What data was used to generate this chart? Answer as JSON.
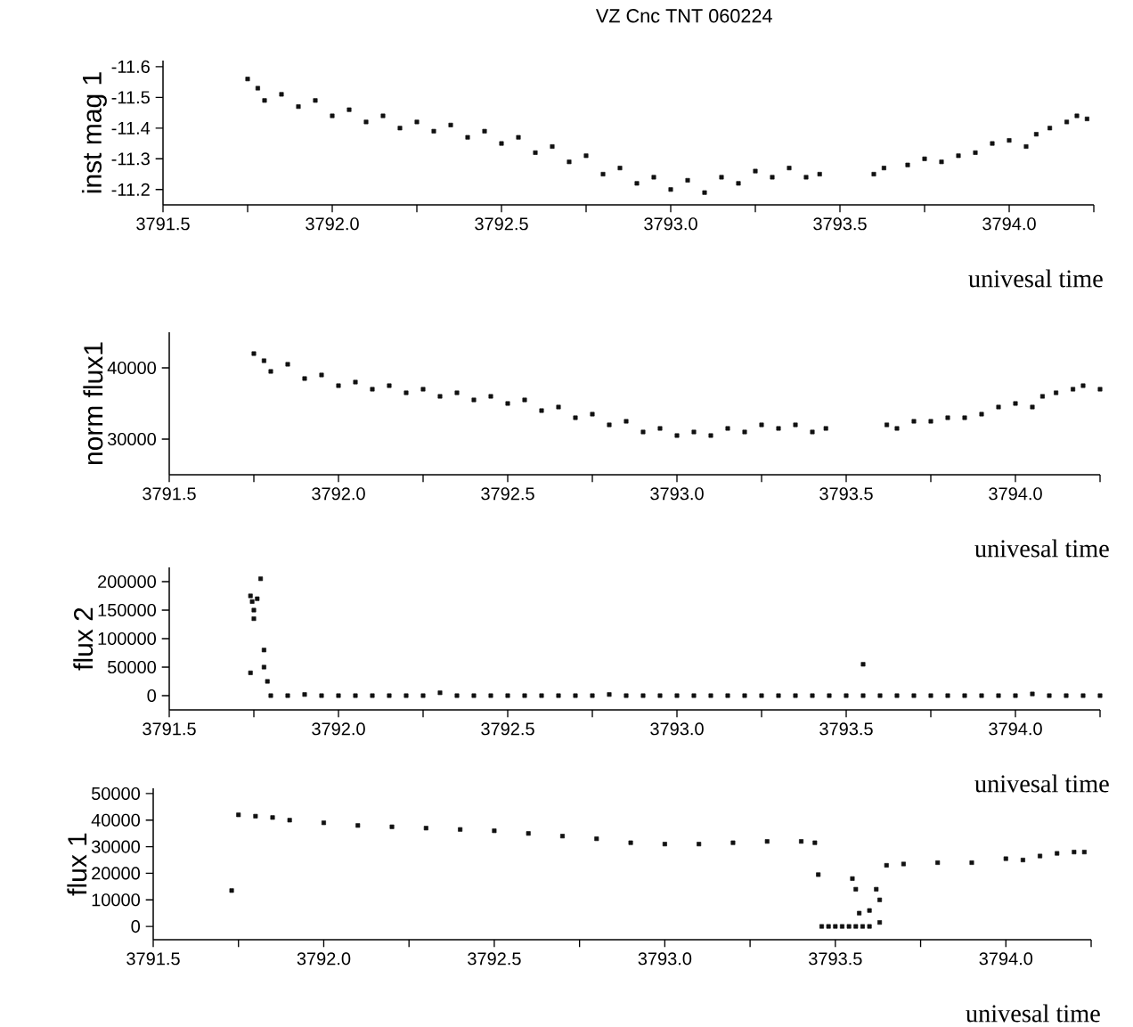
{
  "chart_data": [
    {
      "type": "scatter",
      "title": "VZ Cnc TNT 060224",
      "xlabel": "univesal time",
      "ylabel": "inst mag 1",
      "marker": "square",
      "color": "#111111",
      "xlim": [
        3791.5,
        3794.25
      ],
      "ylim": [
        -11.15,
        -11.62
      ],
      "xticks": [
        {
          "value": 3791.5,
          "label": "3791.5"
        },
        {
          "value": 3791.75,
          "label": null
        },
        {
          "value": 3792,
          "label": "3792.0"
        },
        {
          "value": 3792.25,
          "label": null
        },
        {
          "value": 3792.5,
          "label": "3792.5"
        },
        {
          "value": 3792.75,
          "label": null
        },
        {
          "value": 3793,
          "label": "3793.0"
        },
        {
          "value": 3793.25,
          "label": null
        },
        {
          "value": 3793.5,
          "label": "3793.5"
        },
        {
          "value": 3793.75,
          "label": null
        },
        {
          "value": 3794,
          "label": "3794.0"
        },
        {
          "value": 3794.25,
          "label": null
        }
      ],
      "yticks": [
        -11.6,
        -11.5,
        -11.4,
        -11.3,
        -11.2
      ],
      "x": [
        3791.75,
        3791.78,
        3791.8,
        3791.85,
        3791.9,
        3791.95,
        3792.0,
        3792.05,
        3792.1,
        3792.15,
        3792.2,
        3792.25,
        3792.3,
        3792.35,
        3792.4,
        3792.45,
        3792.5,
        3792.55,
        3792.6,
        3792.65,
        3792.7,
        3792.75,
        3792.8,
        3792.85,
        3792.9,
        3792.95,
        3793.0,
        3793.05,
        3793.1,
        3793.15,
        3793.2,
        3793.25,
        3793.3,
        3793.35,
        3793.4,
        3793.44,
        3793.6,
        3793.63,
        3793.7,
        3793.75,
        3793.8,
        3793.85,
        3793.9,
        3793.95,
        3794.0,
        3794.05,
        3794.08,
        3794.12,
        3794.17,
        3794.2,
        3794.23
      ],
      "values": [
        -11.56,
        -11.53,
        -11.49,
        -11.51,
        -11.47,
        -11.49,
        -11.44,
        -11.46,
        -11.42,
        -11.44,
        -11.4,
        -11.42,
        -11.39,
        -11.41,
        -11.37,
        -11.39,
        -11.35,
        -11.37,
        -11.32,
        -11.34,
        -11.29,
        -11.31,
        -11.25,
        -11.27,
        -11.22,
        -11.24,
        -11.2,
        -11.23,
        -11.19,
        -11.24,
        -11.22,
        -11.26,
        -11.24,
        -11.27,
        -11.24,
        -11.25,
        -11.25,
        -11.27,
        -11.28,
        -11.3,
        -11.29,
        -11.31,
        -11.32,
        -11.35,
        -11.36,
        -11.34,
        -11.38,
        -11.4,
        -11.42,
        -11.44,
        -11.43
      ]
    },
    {
      "type": "scatter",
      "xlabel": "univesal time",
      "ylabel": "norm flux1",
      "marker": "square",
      "color": "#111111",
      "xlim": [
        3791.5,
        3794.25
      ],
      "ylim": [
        25000,
        45000
      ],
      "xticks": [
        {
          "value": 3791.5,
          "label": "3791.5"
        },
        {
          "value": 3791.75,
          "label": null
        },
        {
          "value": 3792,
          "label": "3792.0"
        },
        {
          "value": 3792.25,
          "label": null
        },
        {
          "value": 3792.5,
          "label": "3792.5"
        },
        {
          "value": 3792.75,
          "label": null
        },
        {
          "value": 3793,
          "label": "3793.0"
        },
        {
          "value": 3793.25,
          "label": null
        },
        {
          "value": 3793.5,
          "label": "3793.5"
        },
        {
          "value": 3793.75,
          "label": null
        },
        {
          "value": 3794,
          "label": "3794.0"
        },
        {
          "value": 3794.25,
          "label": null
        }
      ],
      "yticks": [
        30000,
        40000
      ],
      "x": [
        3791.75,
        3791.78,
        3791.8,
        3791.85,
        3791.9,
        3791.95,
        3792.0,
        3792.05,
        3792.1,
        3792.15,
        3792.2,
        3792.25,
        3792.3,
        3792.35,
        3792.4,
        3792.45,
        3792.5,
        3792.55,
        3792.6,
        3792.65,
        3792.7,
        3792.75,
        3792.8,
        3792.85,
        3792.9,
        3792.95,
        3793.0,
        3793.05,
        3793.1,
        3793.15,
        3793.2,
        3793.25,
        3793.3,
        3793.35,
        3793.4,
        3793.44,
        3793.62,
        3793.65,
        3793.7,
        3793.75,
        3793.8,
        3793.85,
        3793.9,
        3793.95,
        3794.0,
        3794.05,
        3794.08,
        3794.12,
        3794.17,
        3794.2,
        3794.25
      ],
      "values": [
        42000,
        41000,
        39500,
        40500,
        38500,
        39000,
        37500,
        38000,
        37000,
        37500,
        36500,
        37000,
        36000,
        36500,
        35500,
        36000,
        35000,
        35500,
        34000,
        34500,
        33000,
        33500,
        32000,
        32500,
        31000,
        31500,
        30500,
        31000,
        30500,
        31500,
        31000,
        32000,
        31500,
        32000,
        31000,
        31500,
        32000,
        31500,
        32500,
        32500,
        33000,
        33000,
        33500,
        34500,
        35000,
        34500,
        36000,
        36500,
        37000,
        37500,
        37000
      ]
    },
    {
      "type": "scatter",
      "xlabel": "univesal time",
      "ylabel": "flux 2",
      "marker": "square",
      "color": "#111111",
      "xlim": [
        3791.5,
        3794.25
      ],
      "ylim": [
        -25000,
        225000
      ],
      "xticks": [
        {
          "value": 3791.5,
          "label": "3791.5"
        },
        {
          "value": 3791.75,
          "label": null
        },
        {
          "value": 3792,
          "label": "3792.0"
        },
        {
          "value": 3792.25,
          "label": null
        },
        {
          "value": 3792.5,
          "label": "3792.5"
        },
        {
          "value": 3792.75,
          "label": null
        },
        {
          "value": 3793,
          "label": "3793.0"
        },
        {
          "value": 3793.25,
          "label": null
        },
        {
          "value": 3793.5,
          "label": "3793.5"
        },
        {
          "value": 3793.75,
          "label": null
        },
        {
          "value": 3794,
          "label": "3794.0"
        },
        {
          "value": 3794.25,
          "label": null
        }
      ],
      "yticks": [
        0,
        50000,
        100000,
        150000,
        200000
      ],
      "x": [
        3791.74,
        3791.74,
        3791.745,
        3791.75,
        3791.75,
        3791.76,
        3791.77,
        3791.78,
        3791.78,
        3791.79,
        3791.8,
        3791.85,
        3791.9,
        3791.95,
        3792.0,
        3792.05,
        3792.1,
        3792.15,
        3792.2,
        3792.25,
        3792.3,
        3792.35,
        3792.4,
        3792.45,
        3792.5,
        3792.55,
        3792.6,
        3792.65,
        3792.7,
        3792.75,
        3792.8,
        3792.85,
        3792.9,
        3792.95,
        3793.0,
        3793.05,
        3793.1,
        3793.15,
        3793.2,
        3793.25,
        3793.3,
        3793.35,
        3793.4,
        3793.45,
        3793.5,
        3793.55,
        3793.55,
        3793.6,
        3793.65,
        3793.7,
        3793.75,
        3793.8,
        3793.85,
        3793.9,
        3793.95,
        3794.0,
        3794.05,
        3794.1,
        3794.15,
        3794.2,
        3794.25
      ],
      "values": [
        40000,
        175000,
        165000,
        150000,
        135000,
        170000,
        205000,
        80000,
        50000,
        25000,
        0,
        0,
        2000,
        0,
        0,
        0,
        0,
        0,
        0,
        0,
        5000,
        0,
        0,
        0,
        0,
        0,
        0,
        0,
        0,
        0,
        2000,
        0,
        0,
        0,
        0,
        0,
        0,
        0,
        0,
        0,
        0,
        0,
        0,
        0,
        0,
        0,
        55000,
        0,
        0,
        0,
        0,
        0,
        0,
        0,
        0,
        0,
        3000,
        0,
        0,
        0,
        0
      ]
    },
    {
      "type": "scatter",
      "xlabel": "univesal time",
      "ylabel": "flux 1",
      "marker": "square",
      "color": "#111111",
      "xlim": [
        3791.5,
        3794.25
      ],
      "ylim": [
        -5000,
        52000
      ],
      "xticks": [
        {
          "value": 3791.5,
          "label": "3791.5"
        },
        {
          "value": 3791.75,
          "label": null
        },
        {
          "value": 3792,
          "label": "3792.0"
        },
        {
          "value": 3792.25,
          "label": null
        },
        {
          "value": 3792.5,
          "label": "3792.5"
        },
        {
          "value": 3792.75,
          "label": null
        },
        {
          "value": 3793,
          "label": "3793.0"
        },
        {
          "value": 3793.25,
          "label": null
        },
        {
          "value": 3793.5,
          "label": "3793.5"
        },
        {
          "value": 3793.75,
          "label": null
        },
        {
          "value": 3794,
          "label": "3794.0"
        },
        {
          "value": 3794.25,
          "label": null
        }
      ],
      "yticks": [
        0,
        10000,
        20000,
        30000,
        40000,
        50000
      ],
      "x": [
        3791.73,
        3791.75,
        3791.8,
        3791.85,
        3791.9,
        3792.0,
        3792.1,
        3792.2,
        3792.3,
        3792.4,
        3792.5,
        3792.6,
        3792.7,
        3792.8,
        3792.9,
        3793.0,
        3793.1,
        3793.2,
        3793.3,
        3793.4,
        3793.44,
        3793.45,
        3793.46,
        3793.48,
        3793.5,
        3793.52,
        3793.54,
        3793.56,
        3793.58,
        3793.6,
        3793.55,
        3793.56,
        3793.57,
        3793.6,
        3793.62,
        3793.63,
        3793.63,
        3793.65,
        3793.7,
        3793.8,
        3793.9,
        3794.0,
        3794.05,
        3794.1,
        3794.15,
        3794.2,
        3794.23
      ],
      "values": [
        13500,
        42000,
        41500,
        41000,
        40000,
        39000,
        38000,
        37500,
        37000,
        36500,
        36000,
        35000,
        34000,
        33000,
        31500,
        31000,
        31000,
        31500,
        32000,
        32000,
        31500,
        19500,
        0,
        0,
        0,
        0,
        0,
        0,
        0,
        0,
        18000,
        14000,
        5000,
        6000,
        14000,
        10000,
        1500,
        23000,
        23500,
        24000,
        24000,
        25500,
        25000,
        26500,
        27500,
        28000,
        28000
      ]
    }
  ]
}
